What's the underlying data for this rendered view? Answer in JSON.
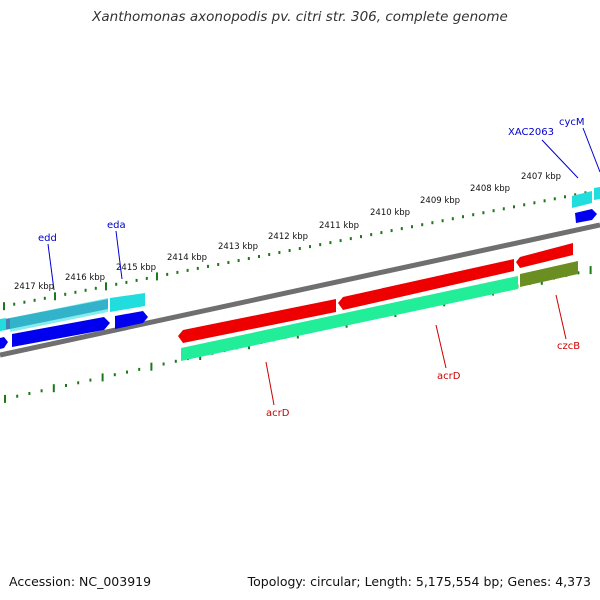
{
  "title": "Xanthomonas axonopodis pv. citri str. 306, complete genome",
  "footer": {
    "accession": "Accession: NC_003919",
    "summary": "Topology: circular; Length: 5,175,554 bp; Genes: 4,373"
  },
  "colors": {
    "backbone": "#8a8a8a",
    "tick": "#1a7a1a",
    "forward_label": "#0000cc",
    "reverse_label": "#cc0000",
    "cds_red": "#ee0000",
    "cds_teal": "#22ee99",
    "cds_olive": "#6b8e23",
    "cds_cyan": "#22dddd",
    "cds_blue": "#0000ee",
    "cds_steel": "#4682b4"
  },
  "ruler_ticks": [
    "2407 kbp",
    "2408 kbp",
    "2409 kbp",
    "2410 kbp",
    "2411 kbp",
    "2412 kbp",
    "2413 kbp",
    "2414 kbp",
    "2415 kbp",
    "2416 kbp",
    "2417 kbp"
  ],
  "gene_labels": {
    "cycM": "cycM",
    "XAC2063": "XAC2063",
    "edd": "edd",
    "eda": "eda",
    "acrD_lower": "acrD",
    "acrD_upper": "acrD",
    "czcB": "czcB"
  }
}
